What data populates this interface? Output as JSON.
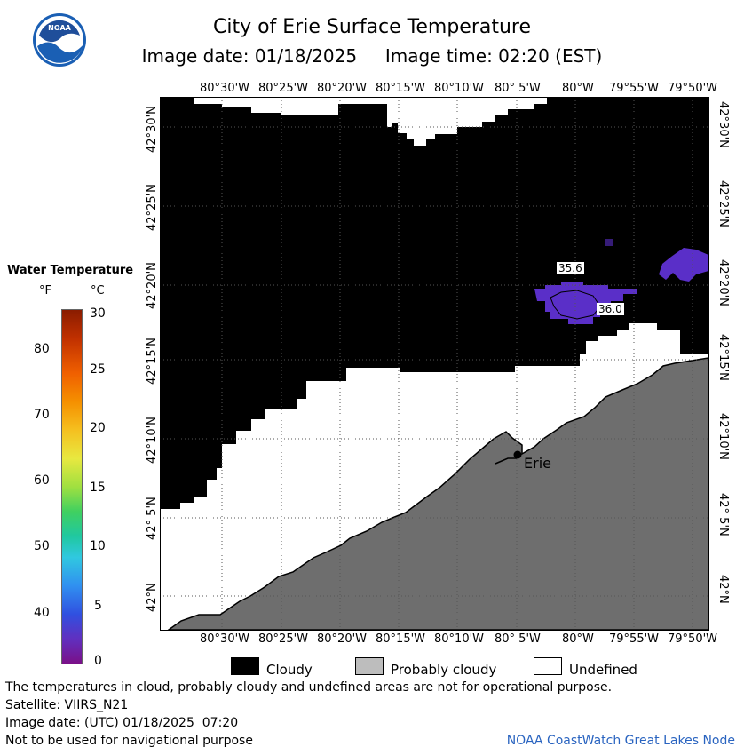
{
  "header": {
    "logo_text": "NOAA",
    "title": "City of Erie Surface Temperature",
    "image_date": "Image date: 01/18/2025",
    "image_time": "Image time: 02:20 (EST)"
  },
  "map": {
    "lon_labels": [
      "80°30'W",
      "80°25'W",
      "80°20'W",
      "80°15'W",
      "80°10'W",
      "80° 5'W",
      "80°W",
      "79°55'W",
      "79°50'W"
    ],
    "lat_labels": [
      "42°30'N",
      "42°25'N",
      "42°20'N",
      "42°15'N",
      "42°10'N",
      "42° 5'N",
      "42°N"
    ],
    "temperature_labels": [
      "35.6",
      "36.0"
    ],
    "city_label": "Erie",
    "colors": {
      "cloudy": "#000000",
      "land": "#6e6e6e",
      "undefined": "#ffffff",
      "water": "#5a2fc8"
    }
  },
  "colorbar": {
    "title": "Water Temperature",
    "unit_f": "°F",
    "unit_c": "°C",
    "f_ticks": [
      "80",
      "70",
      "60",
      "50",
      "40"
    ],
    "c_ticks": [
      "30",
      "25",
      "20",
      "15",
      "10",
      "5",
      "0"
    ]
  },
  "legend": {
    "cloudy": "Cloudy",
    "probably_cloudy": "Probably cloudy",
    "undefined": "Undefined"
  },
  "footer": {
    "note": "The temperatures in cloud, probably cloudy and undefined areas are not for operational purpose.",
    "satellite": "Satellite: VIIRS_N21",
    "image_date_utc": "Image date: (UTC) 01/18/2025  07:20",
    "nav_note": "Not to be used for navigational purpose",
    "credit": "NOAA CoastWatch Great Lakes Node"
  }
}
